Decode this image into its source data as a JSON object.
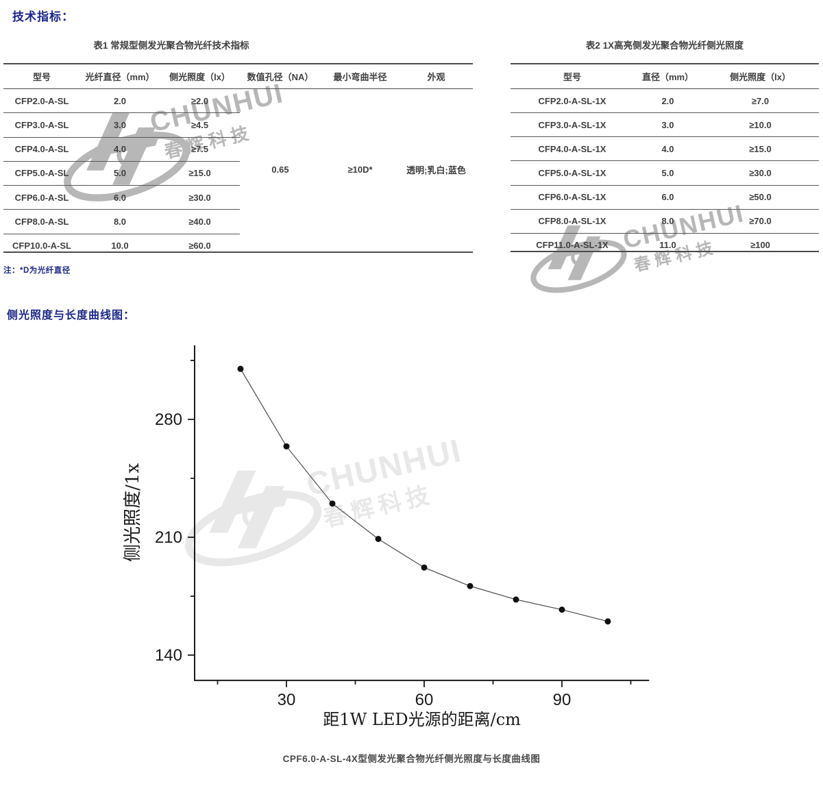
{
  "page": {
    "section1_heading": "技术指标：",
    "section2_heading": "侧光照度与长度曲线图：",
    "note": "注：*D为光纤直径",
    "caption": "CPF6.0-A-SL-4X型侧发光聚合物光纤侧光照度与长度曲线图"
  },
  "colors": {
    "heading_blue": "#1c2786",
    "table_text": "#3f3f3f",
    "table_line": "#4a4a4a",
    "axis_black": "#1a1a1a",
    "series_line": "#4a4a4a",
    "marker_black": "#111111",
    "watermark_gray": "#b7b7b7",
    "watermark_light": "#e8e8e8"
  },
  "watermark": {
    "brand": "CHUNHUI",
    "brand_cn": "春辉科技"
  },
  "table1": {
    "title": "表1 常规型侧发光聚合物光纤技术指标",
    "headers": [
      "型号",
      "光纤直径（mm）",
      "侧光照度（lx）",
      "数值孔径（NA）",
      "最小弯曲半径",
      "外观"
    ],
    "rows": [
      [
        "CFP2.0-A-SL",
        "2.0",
        "≥2.0"
      ],
      [
        "CFP3.0-A-SL",
        "3.0",
        "≥4.5"
      ],
      [
        "CFP4.0-A-SL",
        "4.0",
        "≥7.5"
      ],
      [
        "CFP5.0-A-SL",
        "5.0",
        "≥15.0"
      ],
      [
        "CFP6.0-A-SL",
        "6.0",
        "≥30.0"
      ],
      [
        "CFP8.0-A-SL",
        "8.0",
        "≥40.0"
      ],
      [
        "CFP10.0-A-SL",
        "10.0",
        "≥60.0"
      ]
    ],
    "merged": {
      "numerical_aperture": "0.65",
      "min_bend_radius": "≥10D*",
      "appearance": "透明;乳白;蓝色"
    }
  },
  "table2": {
    "title": "表2 1X高亮侧发光聚合物光纤侧光照度",
    "headers": [
      "型号",
      "直径（mm）",
      "侧光照度（lx）"
    ],
    "rows": [
      [
        "CFP2.0-A-SL-1X",
        "2.0",
        "≥7.0"
      ],
      [
        "CFP3.0-A-SL-1X",
        "3.0",
        "≥10.0"
      ],
      [
        "CFP4.0-A-SL-1X",
        "4.0",
        "≥15.0"
      ],
      [
        "CFP5.0-A-SL-1X",
        "5.0",
        "≥30.0"
      ],
      [
        "CFP6.0-A-SL-1X",
        "6.0",
        "≥50.0"
      ],
      [
        "CFP8.0-A-SL-1X",
        "8.0",
        "≥70.0"
      ],
      [
        "CFP11.0-A-SL-1X",
        "11.0",
        "≥100"
      ]
    ]
  },
  "chart_data": {
    "type": "line",
    "title": "CPF6.0-A-SL-4X型侧发光聚合物光纤侧光照度与长度曲线图",
    "xlabel": "距1W LED光源的距离/cm",
    "ylabel": "侧光照度/1x",
    "x": [
      20,
      30,
      40,
      50,
      60,
      70,
      80,
      90,
      100
    ],
    "y": [
      310,
      264,
      230,
      209,
      192,
      181,
      173,
      167,
      160
    ],
    "x_major_ticks": [
      30,
      60,
      90
    ],
    "x_minor_ticks": [
      15,
      45,
      75,
      105
    ],
    "y_major_ticks": [
      140,
      210,
      280
    ],
    "y_minor_ticks": [
      175,
      245,
      315
    ],
    "xlim": [
      10,
      109
    ],
    "ylim": [
      125,
      324
    ],
    "grid": false,
    "legend": "none",
    "marker": "filled-circle"
  }
}
